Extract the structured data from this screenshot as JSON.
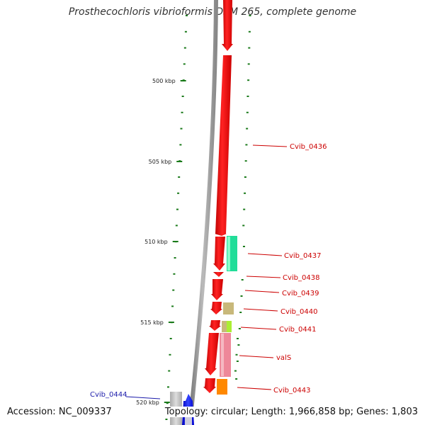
{
  "title": "Prosthecochloris vibrioformis DSM 265, complete genome",
  "footer": {
    "accession": "Accession: NC_009337",
    "summary": "Topology: circular; Length: 1,966,858 bp; Genes: 1,803"
  },
  "ruler_labels": [
    "500 kbp",
    "505 kbp",
    "510 kbp",
    "515 kbp",
    "520 kbp"
  ],
  "gene_labels": [
    {
      "name": "Cvib_0436",
      "color": "#cc0000"
    },
    {
      "name": "Cvib_0437",
      "color": "#cc0000"
    },
    {
      "name": "Cvib_0438",
      "color": "#cc0000"
    },
    {
      "name": "Cvib_0439",
      "color": "#cc0000"
    },
    {
      "name": "Cvib_0440",
      "color": "#cc0000"
    },
    {
      "name": "Cvib_0441",
      "color": "#cc0000"
    },
    {
      "name": "valS",
      "color": "#cc0000"
    },
    {
      "name": "Cvib_0443",
      "color": "#cc0000"
    },
    {
      "name": "Cvib_0444",
      "color": "#1a1aaa"
    }
  ],
  "colors": {
    "forward_strand": "#ee1111",
    "reverse_strand": "#0000ee",
    "backbone": "#888888",
    "tick": "#1a7a1a",
    "gc_teal": "#22dd99",
    "gc_khaki": "#c8b87a",
    "gc_lime": "#aaee33",
    "gc_pink": "#ee8899",
    "gc_orange": "#ff8800"
  }
}
